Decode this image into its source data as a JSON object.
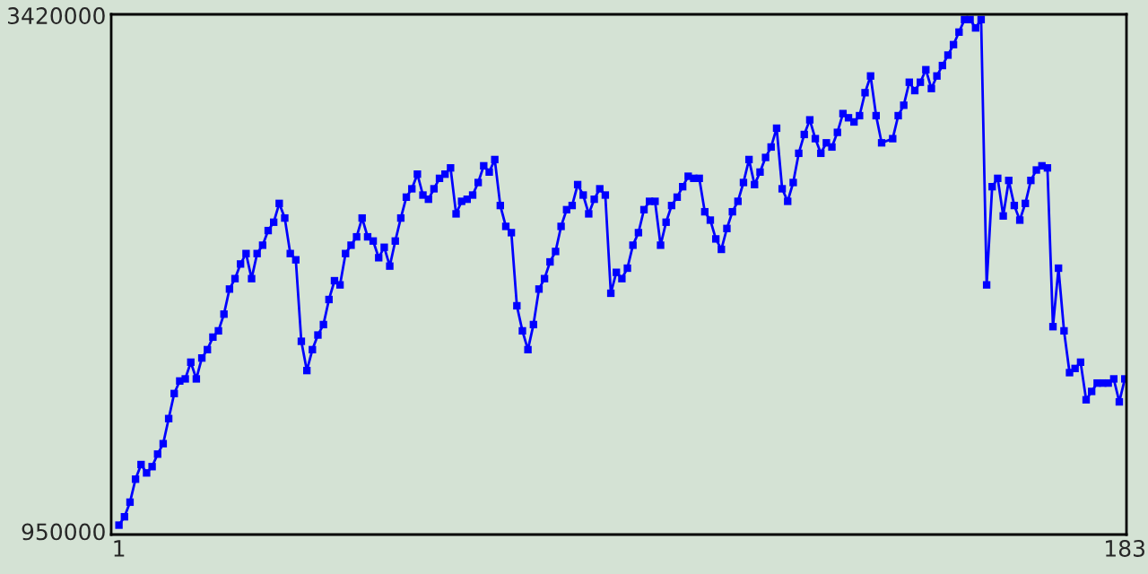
{
  "chart_data": {
    "type": "line",
    "xlim": [
      -0.4,
      183.3
    ],
    "ylim": [
      935000,
      3425000
    ],
    "xticks": [
      1,
      183
    ],
    "yticks": [
      950000,
      3420000
    ],
    "grid": false,
    "legend": false,
    "marker": "square",
    "line_style": "solid",
    "series": [
      {
        "color": "#0000ff",
        "x": [
          1,
          2,
          3,
          4,
          5,
          6,
          7,
          8,
          9,
          10,
          11,
          12,
          13,
          14,
          15,
          16,
          17,
          18,
          19,
          20,
          21,
          22,
          23,
          24,
          25,
          26,
          27,
          28,
          29,
          30,
          31,
          32,
          33,
          34,
          35,
          36,
          37,
          38,
          39,
          40,
          41,
          42,
          43,
          44,
          45,
          46,
          47,
          48,
          49,
          50,
          51,
          52,
          53,
          54,
          55,
          56,
          57,
          58,
          59,
          60,
          61,
          62,
          63,
          64,
          65,
          66,
          67,
          68,
          69,
          70,
          71,
          72,
          73,
          74,
          75,
          76,
          77,
          78,
          79,
          80,
          81,
          82,
          83,
          84,
          85,
          86,
          87,
          88,
          89,
          90,
          91,
          92,
          93,
          94,
          95,
          96,
          97,
          98,
          99,
          100,
          101,
          102,
          103,
          104,
          105,
          106,
          107,
          108,
          109,
          110,
          111,
          112,
          113,
          114,
          115,
          116,
          117,
          118,
          119,
          120,
          121,
          122,
          123,
          124,
          125,
          126,
          127,
          128,
          129,
          130,
          131,
          132,
          133,
          134,
          135,
          136,
          137,
          138,
          139,
          141,
          142,
          143,
          144,
          145,
          146,
          147,
          148,
          149,
          150,
          151,
          152,
          153,
          154,
          155,
          156,
          157,
          158,
          159,
          160,
          161,
          162,
          163,
          164,
          165,
          166,
          167,
          168,
          169,
          170,
          171,
          172,
          173,
          174,
          175,
          176,
          177,
          178,
          179,
          180,
          181,
          182,
          183
        ],
        "values": [
          980000,
          1020000,
          1090000,
          1200000,
          1270000,
          1230000,
          1260000,
          1320000,
          1370000,
          1490000,
          1610000,
          1670000,
          1680000,
          1760000,
          1680000,
          1780000,
          1820000,
          1880000,
          1910000,
          1990000,
          2110000,
          2160000,
          2230000,
          2280000,
          2160000,
          2280000,
          2320000,
          2390000,
          2430000,
          2520000,
          2450000,
          2280000,
          2250000,
          1860000,
          1720000,
          1820000,
          1890000,
          1940000,
          2060000,
          2150000,
          2130000,
          2280000,
          2320000,
          2360000,
          2450000,
          2360000,
          2340000,
          2260000,
          2310000,
          2220000,
          2340000,
          2450000,
          2550000,
          2590000,
          2660000,
          2560000,
          2540000,
          2590000,
          2640000,
          2660000,
          2690000,
          2470000,
          2530000,
          2540000,
          2560000,
          2620000,
          2700000,
          2670000,
          2730000,
          2510000,
          2410000,
          2380000,
          2030000,
          1910000,
          1820000,
          1940000,
          2110000,
          2160000,
          2240000,
          2290000,
          2410000,
          2490000,
          2510000,
          2610000,
          2560000,
          2470000,
          2540000,
          2590000,
          2560000,
          2090000,
          2190000,
          2160000,
          2210000,
          2320000,
          2380000,
          2490000,
          2530000,
          2530000,
          2320000,
          2430000,
          2510000,
          2550000,
          2600000,
          2650000,
          2640000,
          2640000,
          2480000,
          2440000,
          2350000,
          2300000,
          2400000,
          2480000,
          2530000,
          2620000,
          2730000,
          2610000,
          2670000,
          2740000,
          2790000,
          2880000,
          2590000,
          2530000,
          2620000,
          2760000,
          2850000,
          2920000,
          2830000,
          2760000,
          2810000,
          2790000,
          2860000,
          2950000,
          2930000,
          2910000,
          2940000,
          3050000,
          3130000,
          2940000,
          2810000,
          2830000,
          2940000,
          2990000,
          3100000,
          3060000,
          3100000,
          3160000,
          3070000,
          3130000,
          3180000,
          3230000,
          3280000,
          3340000,
          3400000,
          3400000,
          3360000,
          3400000,
          2130000,
          2600000,
          2640000,
          2460000,
          2630000,
          2510000,
          2440000,
          2520000,
          2630000,
          2680000,
          2700000,
          2690000,
          1930000,
          2210000,
          1910000,
          1710000,
          1730000,
          1760000,
          1580000,
          1620000,
          1660000,
          1660000,
          1660000,
          1680000,
          1570000,
          1680000
        ]
      }
    ]
  }
}
